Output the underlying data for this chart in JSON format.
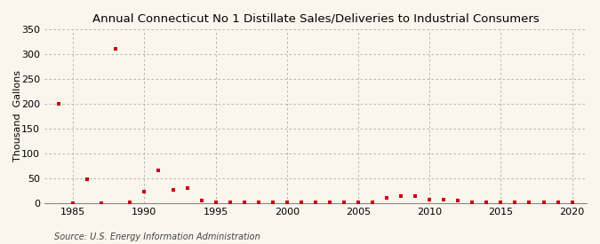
{
  "title": "Annual Connecticut No 1 Distillate Sales/Deliveries to Industrial Consumers",
  "ylabel": "Thousand  Gallons",
  "source": "Source: U.S. Energy Information Administration",
  "background_color": "#faf6ee",
  "point_color": "#cc0000",
  "xlim": [
    1983,
    2021
  ],
  "ylim": [
    0,
    350
  ],
  "yticks": [
    0,
    50,
    100,
    150,
    200,
    250,
    300,
    350
  ],
  "xticks": [
    1985,
    1990,
    1995,
    2000,
    2005,
    2010,
    2015,
    2020
  ],
  "data": [
    [
      1984,
      200
    ],
    [
      1985,
      0
    ],
    [
      1986,
      47
    ],
    [
      1987,
      0
    ],
    [
      1988,
      312
    ],
    [
      1989,
      2
    ],
    [
      1990,
      23
    ],
    [
      1991,
      65
    ],
    [
      1992,
      27
    ],
    [
      1993,
      29
    ],
    [
      1994,
      5
    ],
    [
      1995,
      2
    ],
    [
      1996,
      1
    ],
    [
      1997,
      1
    ],
    [
      1998,
      2
    ],
    [
      1999,
      1
    ],
    [
      2000,
      1
    ],
    [
      2001,
      1
    ],
    [
      2002,
      1
    ],
    [
      2003,
      1
    ],
    [
      2004,
      1
    ],
    [
      2005,
      1
    ],
    [
      2006,
      1
    ],
    [
      2007,
      10
    ],
    [
      2008,
      13
    ],
    [
      2009,
      13
    ],
    [
      2010,
      7
    ],
    [
      2011,
      6
    ],
    [
      2012,
      5
    ],
    [
      2013,
      2
    ],
    [
      2014,
      2
    ],
    [
      2015,
      1
    ],
    [
      2016,
      2
    ],
    [
      2017,
      1
    ],
    [
      2018,
      1
    ],
    [
      2019,
      1
    ],
    [
      2020,
      2
    ]
  ],
  "title_fontsize": 9.5,
  "label_fontsize": 8,
  "tick_fontsize": 8,
  "source_fontsize": 7,
  "marker_size": 10
}
